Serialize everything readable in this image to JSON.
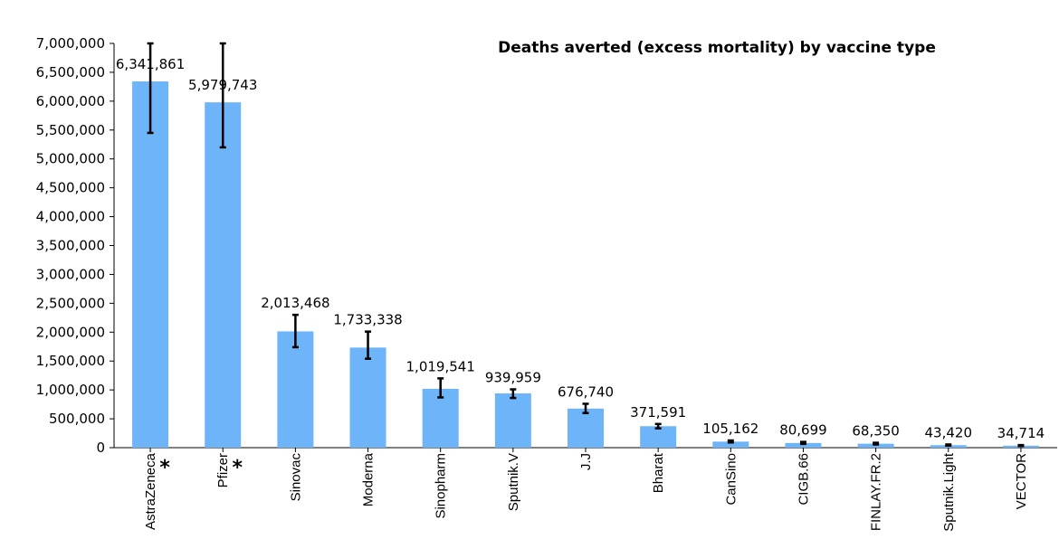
{
  "chart_data": {
    "type": "bar",
    "title": "Deaths averted (excess mortality) by vaccine type",
    "xlabel": "",
    "ylabel": "",
    "ylim": [
      0,
      7000000
    ],
    "y_ticks": [
      0,
      500000,
      1000000,
      1500000,
      2000000,
      2500000,
      3000000,
      3500000,
      4000000,
      4500000,
      5000000,
      5500000,
      6000000,
      6500000,
      7000000
    ],
    "y_tick_labels": [
      "0",
      "500,000",
      "1,000,000",
      "1,500,000",
      "2,000,000",
      "2,500,000",
      "3,000,000",
      "3,500,000",
      "4,000,000",
      "4,500,000",
      "5,000,000",
      "5,500,000",
      "6,000,000",
      "6,500,000",
      "7,000,000"
    ],
    "grid": false,
    "bar_color": "#6EB4F8",
    "categories": [
      "AstraZeneca",
      "Pfizer",
      "Sinovac",
      "Moderna",
      "Sinopharm",
      "Sputnik.V",
      "J.J",
      "Bharat",
      "CanSino",
      "CIGB.66",
      "FINLAY.FR.2",
      "Sputnik.Light",
      "VECTOR"
    ],
    "asterisk_marks": [
      "*",
      "*",
      "",
      "",
      "",
      "",
      "",
      "",
      "",
      "",
      "",
      "",
      ""
    ],
    "values": [
      6341861,
      5979743,
      2013468,
      1733338,
      1019541,
      939959,
      676740,
      371591,
      105162,
      80699,
      68350,
      43420,
      34714
    ],
    "value_labels": [
      "6,341,861",
      "5,979,743",
      "2,013,468",
      "1,733,338",
      "1,019,541",
      "939,959",
      "676,740",
      "371,591",
      "105,162",
      "80,699",
      "68,350",
      "43,420",
      "34,714"
    ],
    "error_low": [
      5450000,
      5200000,
      1740000,
      1540000,
      870000,
      860000,
      600000,
      335000,
      90000,
      65000,
      55000,
      35000,
      27000
    ],
    "error_high": [
      7000000,
      7000000,
      2300000,
      2010000,
      1200000,
      1010000,
      760000,
      410000,
      125000,
      100000,
      85000,
      55000,
      45000
    ]
  }
}
